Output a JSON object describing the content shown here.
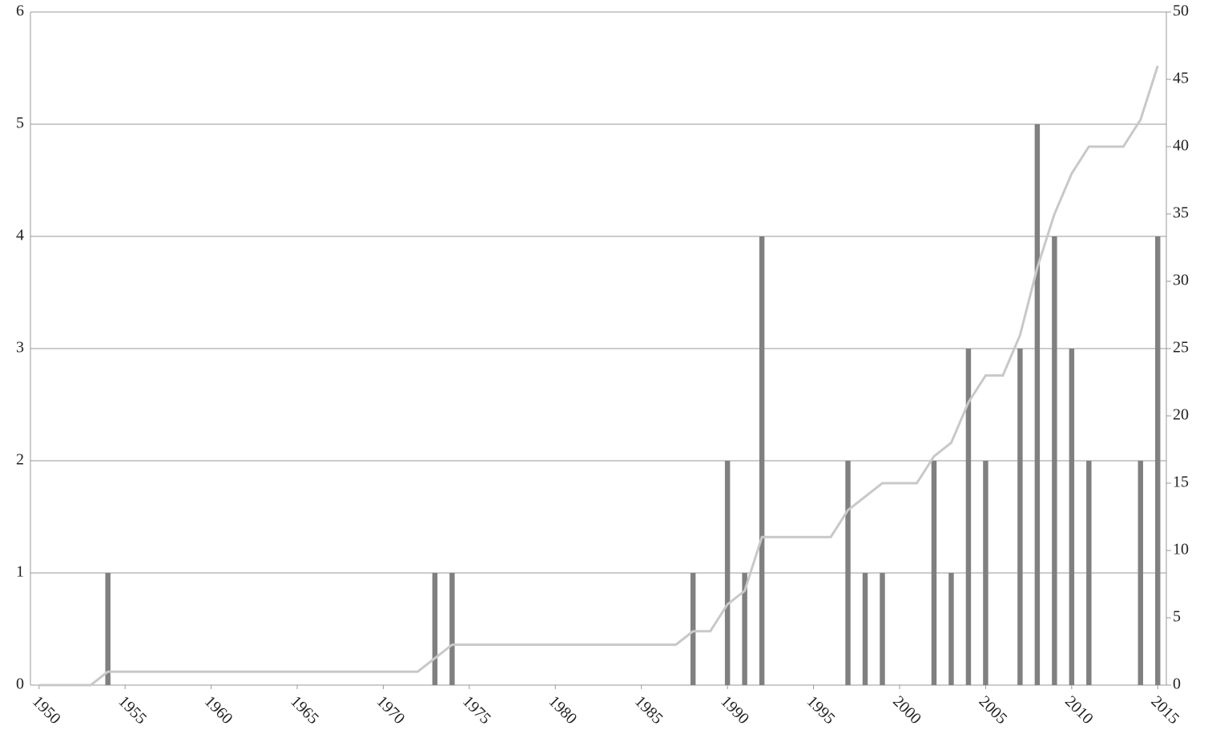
{
  "chart_data": {
    "type": "bar_line",
    "x": [
      1950,
      1951,
      1952,
      1953,
      1954,
      1955,
      1956,
      1957,
      1958,
      1959,
      1960,
      1961,
      1962,
      1963,
      1964,
      1965,
      1966,
      1967,
      1968,
      1969,
      1970,
      1971,
      1972,
      1973,
      1974,
      1975,
      1976,
      1977,
      1978,
      1979,
      1980,
      1981,
      1982,
      1983,
      1984,
      1985,
      1986,
      1987,
      1988,
      1989,
      1990,
      1991,
      1992,
      1993,
      1994,
      1995,
      1996,
      1997,
      1998,
      1999,
      2000,
      2001,
      2002,
      2003,
      2004,
      2005,
      2006,
      2007,
      2008,
      2009,
      2010,
      2011,
      2012,
      2013,
      2014,
      2015
    ],
    "series": [
      {
        "type": "bar",
        "color": "#808080",
        "values": [
          0,
          0,
          0,
          0,
          1,
          0,
          0,
          0,
          0,
          0,
          0,
          0,
          0,
          0,
          0,
          0,
          0,
          0,
          0,
          0,
          0,
          0,
          0,
          1,
          1,
          0,
          0,
          0,
          0,
          0,
          0,
          0,
          0,
          0,
          0,
          0,
          0,
          0,
          1,
          0,
          2,
          1,
          4,
          0,
          0,
          0,
          0,
          2,
          1,
          1,
          0,
          0,
          2,
          1,
          3,
          2,
          0,
          3,
          5,
          4,
          3,
          2,
          0,
          0,
          2,
          4
        ]
      },
      {
        "type": "line",
        "axis": "y2",
        "color": "#c8c8c8",
        "values": [
          0,
          0,
          0,
          0,
          1,
          1,
          1,
          1,
          1,
          1,
          1,
          1,
          1,
          1,
          1,
          1,
          1,
          1,
          1,
          1,
          1,
          1,
          1,
          2,
          3,
          3,
          3,
          3,
          3,
          3,
          3,
          3,
          3,
          3,
          3,
          3,
          3,
          3,
          4,
          4,
          6,
          7,
          11,
          11,
          11,
          11,
          11,
          13,
          14,
          15,
          15,
          15,
          17,
          18,
          21,
          23,
          23,
          26,
          31,
          35,
          38,
          40,
          40,
          40,
          42,
          46
        ]
      }
    ],
    "xlim": [
      1949.5,
      2015.5
    ],
    "xticks": [
      1950,
      1955,
      1960,
      1965,
      1970,
      1975,
      1980,
      1985,
      1990,
      1995,
      2000,
      2005,
      2010,
      2015
    ],
    "ylim": [
      0,
      6
    ],
    "yticks": [
      0,
      1,
      2,
      3,
      4,
      5,
      6
    ],
    "y2lim": [
      0,
      50
    ],
    "y2ticks": [
      0,
      5,
      10,
      15,
      20,
      25,
      30,
      35,
      40,
      45,
      50
    ],
    "grid": true
  }
}
